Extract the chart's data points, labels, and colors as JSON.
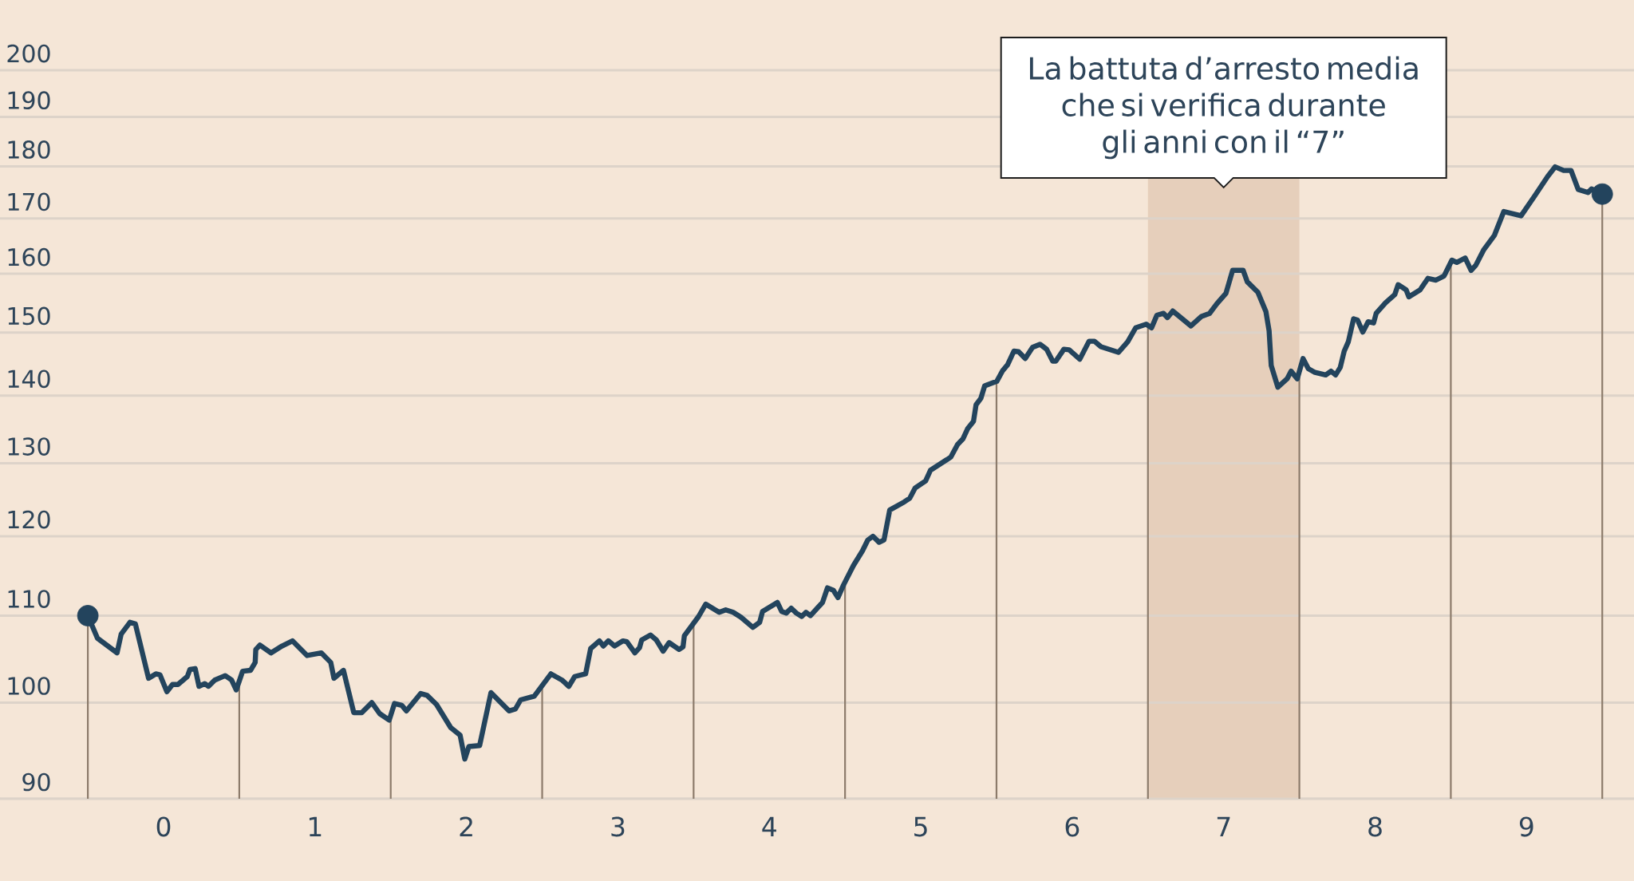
{
  "chart_data": {
    "type": "line",
    "x": [
      -0.5,
      -0.436,
      -0.307,
      -0.28,
      -0.222,
      -0.186,
      -0.099,
      -0.051,
      -0.024,
      0.022,
      0.059,
      0.095,
      0.157,
      0.174,
      0.209,
      0.234,
      0.272,
      0.297,
      0.338,
      0.407,
      0.449,
      0.48,
      0.522,
      0.574,
      0.605,
      0.609,
      0.636,
      0.709,
      0.782,
      0.851,
      0.948,
      1.042,
      1.104,
      1.125,
      1.188,
      1.256,
      1.309,
      1.375,
      1.427,
      1.49,
      1.525,
      1.573,
      1.604,
      1.698,
      1.74,
      1.802,
      1.896,
      1.958,
      1.989,
      2.016,
      2.087,
      2.162,
      2.281,
      2.323,
      2.358,
      2.448,
      2.558,
      2.631,
      2.676,
      2.715,
      2.787,
      2.82,
      2.878,
      2.904,
      2.937,
      2.978,
      3.034,
      3.059,
      3.112,
      3.143,
      3.157,
      3.215,
      3.254,
      3.299,
      3.338,
      3.404,
      3.43,
      3.439,
      3.533,
      3.58,
      3.669,
      3.712,
      3.761,
      3.813,
      3.891,
      3.936,
      3.955,
      4.053,
      4.082,
      4.111,
      4.144,
      4.179,
      4.214,
      4.242,
      4.271,
      4.351,
      4.384,
      4.423,
      4.453,
      4.491,
      4.555,
      4.615,
      4.65,
      4.684,
      4.725,
      4.757,
      4.795,
      4.891,
      4.927,
      4.962,
      5.032,
      5.064,
      5.172,
      5.199,
      5.243,
      5.278,
      5.309,
      5.348,
      5.365,
      5.397,
      5.422,
      5.502,
      5.541,
      5.573,
      5.615,
      5.646,
      5.69,
      5.738,
      5.787,
      5.831,
      5.871,
      5.892,
      5.945,
      5.98,
      6.05,
      6.111,
      6.147,
      6.19,
      6.305,
      6.366,
      6.419,
      6.489,
      6.524,
      6.559,
      6.603,
      6.629,
      6.664,
      6.717,
      6.784,
      6.854,
      6.907,
      6.954,
      7.015,
      7.059,
      7.129,
      7.156,
      7.226,
      7.279,
      7.3,
      7.314,
      7.358,
      7.419,
      7.445,
      7.486,
      7.524,
      7.559,
      7.603,
      7.674,
      7.709,
      7.739,
      7.77,
      7.796,
      7.823,
      7.858,
      7.884,
      7.919,
      7.954,
      7.99,
      8.007,
      8.069,
      8.13,
      8.152,
      8.205,
      8.223,
      8.297,
      8.349,
      8.402,
      8.455,
      8.507,
      8.539,
      8.595,
      8.634,
      8.665,
      8.718,
      8.788,
      8.85,
      8.964,
      9.052,
      9.139,
      9.189,
      9.245,
      9.294,
      9.341,
      9.406,
      9.429,
      9.5
    ],
    "series": [
      {
        "color": "#23445d",
        "values": [
          110.0,
          107.3,
          105.6,
          107.8,
          109.2,
          109.0,
          102.7,
          103.2,
          103.1,
          101.2,
          102.0,
          102.0,
          102.9,
          103.7,
          103.8,
          101.8,
          102.1,
          101.8,
          102.5,
          103.0,
          102.5,
          101.4,
          103.5,
          103.6,
          104.5,
          106.0,
          106.5,
          105.6,
          106.4,
          107.0,
          105.3,
          105.6,
          104.5,
          102.7,
          103.6,
          98.9,
          98.9,
          100.0,
          98.8,
          98.1,
          99.9,
          99.7,
          99.1,
          101.0,
          100.8,
          99.8,
          97.3,
          96.5,
          94.0,
          95.3,
          95.4,
          101.1,
          99.1,
          99.3,
          100.3,
          100.7,
          103.2,
          102.5,
          101.8,
          102.9,
          103.2,
          106.1,
          107.0,
          106.4,
          107.0,
          106.4,
          107.0,
          106.9,
          105.6,
          106.2,
          107.1,
          107.7,
          107.1,
          105.8,
          106.8,
          106.0,
          106.3,
          107.6,
          109.9,
          111.4,
          110.4,
          110.7,
          110.4,
          109.8,
          108.6,
          109.2,
          110.5,
          111.6,
          110.5,
          110.3,
          110.9,
          110.3,
          109.9,
          110.4,
          110.0,
          111.6,
          113.4,
          113.1,
          112.2,
          113.8,
          116.2,
          118.1,
          119.5,
          120.0,
          119.2,
          119.5,
          123.5,
          124.6,
          125.1,
          126.5,
          127.5,
          129.0,
          130.5,
          130.9,
          132.7,
          133.5,
          135.0,
          136.1,
          138.6,
          139.6,
          141.5,
          142.2,
          143.9,
          144.8,
          147.0,
          146.9,
          145.8,
          147.6,
          148.1,
          147.3,
          145.4,
          145.4,
          147.3,
          147.2,
          145.7,
          148.6,
          148.6,
          147.7,
          146.8,
          148.5,
          150.8,
          151.4,
          150.8,
          152.9,
          153.2,
          152.5,
          153.6,
          152.5,
          151.1,
          152.7,
          153.2,
          154.8,
          156.6,
          160.6,
          160.6,
          158.6,
          156.8,
          153.5,
          150.3,
          144.7,
          141.3,
          142.6,
          143.8,
          142.6,
          145.8,
          144.2,
          143.6,
          143.2,
          143.8,
          143.2,
          144.4,
          147.0,
          148.5,
          152.3,
          152.1,
          150.1,
          151.8,
          151.6,
          153.2,
          155.0,
          156.4,
          158.1,
          157.2,
          156.0,
          157.2,
          159.2,
          158.9,
          159.6,
          162.4,
          162.0,
          162.8,
          160.6,
          161.5,
          164.3,
          166.9,
          171.3,
          170.5,
          174.2,
          178.0,
          179.9,
          179.2,
          179.2,
          175.5,
          174.9,
          175.6,
          174.6
        ]
      },
      {
        "type": "scatter",
        "marker": "circle",
        "color": "#23445d",
        "x": [
          -0.5,
          9.5
        ],
        "values": [
          110.0,
          174.6
        ]
      }
    ],
    "xlim": [
      -1.08,
      9.71
    ],
    "ylim": [
      90,
      216
    ],
    "log": true,
    "xticks": [
      0,
      1,
      2,
      3,
      4,
      5,
      6,
      7,
      8,
      9
    ],
    "yticks": [
      90,
      100,
      110,
      120,
      130,
      140,
      150,
      160,
      170,
      180,
      190,
      200
    ],
    "grid": "y",
    "bands": [
      {
        "axis": "x",
        "from": 6.5,
        "to": 7.5,
        "color": "#e6cfbb",
        "label": "La battuta d’arresto media che si verifica durante gli anni con il “7”"
      }
    ],
    "ref_lines": [
      {
        "axis": "x",
        "value": -0.5,
        "color": "#8c7b6b"
      },
      {
        "axis": "x",
        "value": 0.5,
        "color": "#8c7b6b"
      },
      {
        "axis": "x",
        "value": 1.5,
        "color": "#8c7b6b"
      },
      {
        "axis": "x",
        "value": 2.5,
        "color": "#8c7b6b"
      },
      {
        "axis": "x",
        "value": 3.5,
        "color": "#8c7b6b"
      },
      {
        "axis": "x",
        "value": 4.5,
        "color": "#8c7b6b"
      },
      {
        "axis": "x",
        "value": 5.5,
        "color": "#8c7b6b"
      },
      {
        "axis": "x",
        "value": 6.5,
        "color": "#8c7b6b"
      },
      {
        "axis": "x",
        "value": 7.5,
        "color": "#8c7b6b"
      },
      {
        "axis": "x",
        "value": 8.5,
        "color": "#8c7b6b"
      },
      {
        "axis": "x",
        "value": 9.5,
        "color": "#8c7b6b"
      }
    ]
  }
}
